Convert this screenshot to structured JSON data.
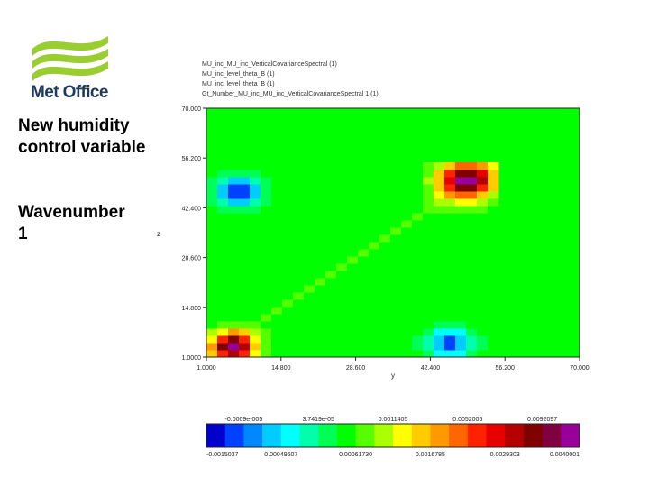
{
  "logo": {
    "text": "Met Office",
    "mark": "met-office-swoosh"
  },
  "side": {
    "title": "New humidity control variable",
    "wave_label": "Wavenumber",
    "wave_value": "1"
  },
  "meta": [
    "MU_inc_MU_inc_VerticalCovarianceSpectral (1)",
    "MU_inc_level_theta_B (1)",
    "MU_inc_level_theta_B (1)",
    "Gt_Number_MU_inc_MU_inc_VerticalCovarianceSpectral 1 (1)"
  ],
  "colors": {
    "background": "#00ff00",
    "scale": [
      "#0000cc",
      "#0040ff",
      "#0088ff",
      "#00ccff",
      "#00ffff",
      "#00ffaa",
      "#00ff55",
      "#00ff00",
      "#55ff00",
      "#aaff00",
      "#ffff00",
      "#ffcc00",
      "#ff9900",
      "#ff6600",
      "#ff2200",
      "#e60000",
      "#b30000",
      "#800000",
      "#800040",
      "#990099"
    ]
  },
  "chart_data": {
    "type": "heatmap",
    "title": "",
    "xlabel": "y",
    "ylabel": "z",
    "xlim": [
      1,
      70
    ],
    "ylim": [
      1,
      70
    ],
    "data_extent": [
      1,
      54
    ],
    "x_ticks": [
      "1.0000",
      "14.800",
      "28.600",
      "42.400",
      "56.200",
      "70.000"
    ],
    "y_ticks": [
      "1.0000",
      "14.800",
      "28.600",
      "42.400",
      "56.200",
      "70.000"
    ],
    "colorbar_top_labels": [
      "-0.0009e-005",
      "3.7419e-05",
      "0.0011405",
      "0.0052005",
      "0.0092097"
    ],
    "colorbar_bottom_labels": [
      "-0.0015037",
      "0.00049607",
      "0.00061730",
      "0.0016785",
      "0.0029303",
      "0.0040001"
    ],
    "features": [
      {
        "x": 5,
        "y": 3,
        "value": 0.009,
        "extent": 4
      },
      {
        "x": 48,
        "y": 49,
        "value": 0.0092,
        "extent": 5
      },
      {
        "x": 6,
        "y": 46,
        "value": -0.0015,
        "extent": 4
      },
      {
        "x": 45,
        "y": 4,
        "value": -0.0013,
        "extent": 4
      }
    ]
  }
}
